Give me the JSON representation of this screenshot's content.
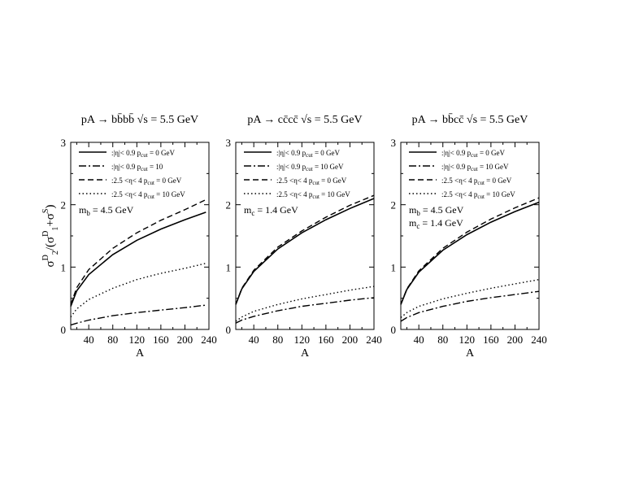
{
  "figure": {
    "ylabel_html": "σ<sup>D</sup><sub>2</sub>/(σ<sup>D</sup><sub>1</sub>+σ<sup>S</sup>)",
    "ylabel_parts": {
      "sigma": "σ",
      "D": "D",
      "two": "2",
      "one": "1",
      "S": "S",
      "open": "/(",
      "plus": "+",
      "close": ")"
    }
  },
  "chart_data": [
    {
      "type": "line",
      "title": "pA → bb̄bb̄  √s = 5.5 GeV",
      "xlabel": "A",
      "ylabel": "σD2/(σD1+σS)",
      "xlim": [
        10,
        240
      ],
      "ylim": [
        0,
        3
      ],
      "xticks": [
        40,
        80,
        120,
        160,
        200,
        240
      ],
      "yticks": [
        0,
        1,
        2,
        3
      ],
      "annotations": [
        {
          "main": "m",
          "sub": "b",
          "rest": " = 4.5 GeV"
        }
      ],
      "series": [
        {
          "name": ":|η|< 0.9  p_cut = 0 GeV",
          "style": "solid",
          "x": [
            10,
            20,
            40,
            80,
            120,
            160,
            200,
            235
          ],
          "y": [
            0.37,
            0.62,
            0.88,
            1.2,
            1.43,
            1.61,
            1.76,
            1.88
          ]
        },
        {
          "name": ":|η|< 0.9  p_cut = 10",
          "style": "dashdot",
          "x": [
            10,
            20,
            40,
            80,
            120,
            160,
            200,
            235
          ],
          "y": [
            0.07,
            0.1,
            0.15,
            0.22,
            0.27,
            0.31,
            0.35,
            0.39
          ]
        },
        {
          "name": ":2.5 <η< 4  p_cut = 0 GeV",
          "style": "dashed",
          "x": [
            10,
            20,
            40,
            80,
            120,
            160,
            200,
            235
          ],
          "y": [
            0.4,
            0.67,
            0.96,
            1.3,
            1.55,
            1.75,
            1.92,
            2.08
          ]
        },
        {
          "name": ":2.5 <η< 4  p_cut = 10 GeV",
          "style": "dotted",
          "x": [
            10,
            20,
            40,
            80,
            120,
            160,
            200,
            235
          ],
          "y": [
            0.2,
            0.33,
            0.48,
            0.66,
            0.8,
            0.9,
            0.98,
            1.06
          ]
        }
      ]
    },
    {
      "type": "line",
      "title": "pA → cc̄cc̄  √s = 5.5 GeV",
      "xlabel": "A",
      "ylabel": "",
      "xlim": [
        10,
        240
      ],
      "ylim": [
        0,
        3
      ],
      "xticks": [
        40,
        80,
        120,
        160,
        200,
        240
      ],
      "yticks": [
        0,
        1,
        2,
        3
      ],
      "annotations": [
        {
          "main": "m",
          "sub": "c",
          "rest": " = 1.4 GeV"
        }
      ],
      "series": [
        {
          "name": ":|η|< 0.9  p_cut = 0 GeV",
          "style": "solid",
          "x": [
            10,
            20,
            40,
            80,
            120,
            160,
            200,
            240
          ],
          "y": [
            0.4,
            0.65,
            0.93,
            1.29,
            1.55,
            1.76,
            1.94,
            2.1
          ]
        },
        {
          "name": ":|η|< 0.9  p_cut = 10 GeV",
          "style": "dashdot",
          "x": [
            10,
            20,
            40,
            80,
            120,
            160,
            200,
            240
          ],
          "y": [
            0.1,
            0.15,
            0.21,
            0.3,
            0.37,
            0.42,
            0.47,
            0.51
          ]
        },
        {
          "name": ":2.5 <η< 4  p_cut = 0 GeV",
          "style": "dashed",
          "x": [
            10,
            20,
            40,
            80,
            120,
            160,
            200,
            240
          ],
          "y": [
            0.4,
            0.66,
            0.95,
            1.32,
            1.58,
            1.8,
            1.99,
            2.15
          ]
        },
        {
          "name": ":2.5 <η< 4  p_cut = 10 GeV",
          "style": "dotted",
          "x": [
            10,
            20,
            40,
            80,
            120,
            160,
            200,
            240
          ],
          "y": [
            0.13,
            0.2,
            0.29,
            0.4,
            0.49,
            0.56,
            0.63,
            0.69
          ]
        }
      ]
    },
    {
      "type": "line",
      "title": "pA → bb̄cc̄  √s = 5.5 GeV",
      "xlabel": "A",
      "ylabel": "",
      "xlim": [
        10,
        240
      ],
      "ylim": [
        0,
        3
      ],
      "xticks": [
        40,
        80,
        120,
        160,
        200,
        240
      ],
      "yticks": [
        0,
        1,
        2,
        3
      ],
      "annotations": [
        {
          "main": "m",
          "sub": "b",
          "rest": " = 4.5 GeV"
        },
        {
          "main": "m",
          "sub": "c",
          "rest": " = 1.4 GeV"
        }
      ],
      "series": [
        {
          "name": ":|η|< 0.9  p_cut = 0 GeV",
          "style": "solid",
          "x": [
            10,
            20,
            40,
            80,
            120,
            160,
            200,
            240
          ],
          "y": [
            0.4,
            0.64,
            0.92,
            1.27,
            1.52,
            1.72,
            1.89,
            2.04
          ]
        },
        {
          "name": ":|η|< 0.9  p_cut = 10 GeV",
          "style": "dashdot",
          "x": [
            10,
            20,
            40,
            80,
            120,
            160,
            200,
            240
          ],
          "y": [
            0.13,
            0.19,
            0.27,
            0.37,
            0.45,
            0.51,
            0.56,
            0.61
          ]
        },
        {
          "name": ":2.5 <η< 4  p_cut = 0 GeV",
          "style": "dashed",
          "x": [
            10,
            20,
            40,
            80,
            120,
            160,
            200,
            240
          ],
          "y": [
            0.4,
            0.65,
            0.94,
            1.3,
            1.56,
            1.77,
            1.95,
            2.11
          ]
        },
        {
          "name": ":2.5 <η< 4  p_cut = 10 GeV",
          "style": "dotted",
          "x": [
            10,
            20,
            40,
            80,
            120,
            160,
            200,
            240
          ],
          "y": [
            0.19,
            0.27,
            0.37,
            0.49,
            0.58,
            0.66,
            0.73,
            0.8
          ]
        }
      ]
    }
  ]
}
